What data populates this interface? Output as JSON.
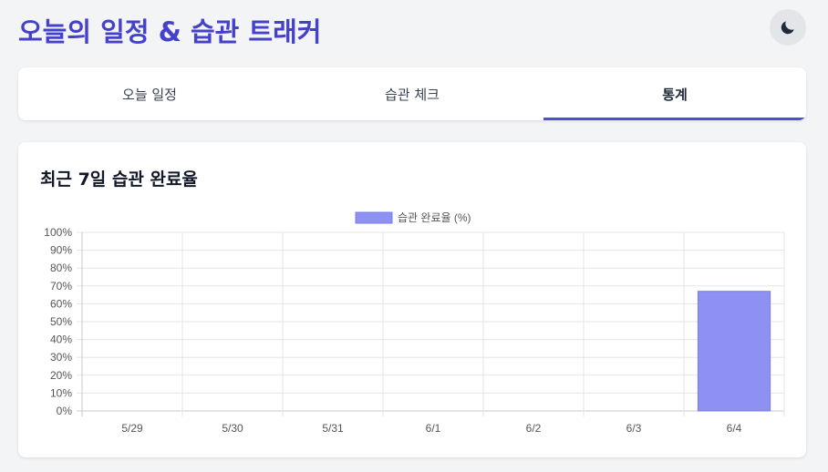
{
  "app": {
    "title": "오늘의 일정 & 습관 트래커"
  },
  "theme_toggle": {
    "icon": "moon-icon"
  },
  "tabs": [
    {
      "label": "오늘 일정",
      "active": false
    },
    {
      "label": "습관 체크",
      "active": false
    },
    {
      "label": "통계",
      "active": true
    }
  ],
  "stats": {
    "title": "최근 7일 습관 완료율"
  },
  "colors": {
    "accent": "#4542c9",
    "bar_fill": "#8e91f1",
    "bar_stroke": "#7b7fe8"
  },
  "chart_data": {
    "type": "bar",
    "categories": [
      "5/29",
      "5/30",
      "5/31",
      "6/1",
      "6/2",
      "6/3",
      "6/4"
    ],
    "series": [
      {
        "name": "습관 완료율 (%)",
        "values": [
          0,
          0,
          0,
          0,
          0,
          0,
          67
        ]
      }
    ],
    "ylim": [
      0,
      100
    ],
    "yticks": [
      "0%",
      "10%",
      "20%",
      "30%",
      "40%",
      "50%",
      "60%",
      "70%",
      "80%",
      "90%",
      "100%"
    ],
    "grid": true,
    "legend": "top-center"
  }
}
